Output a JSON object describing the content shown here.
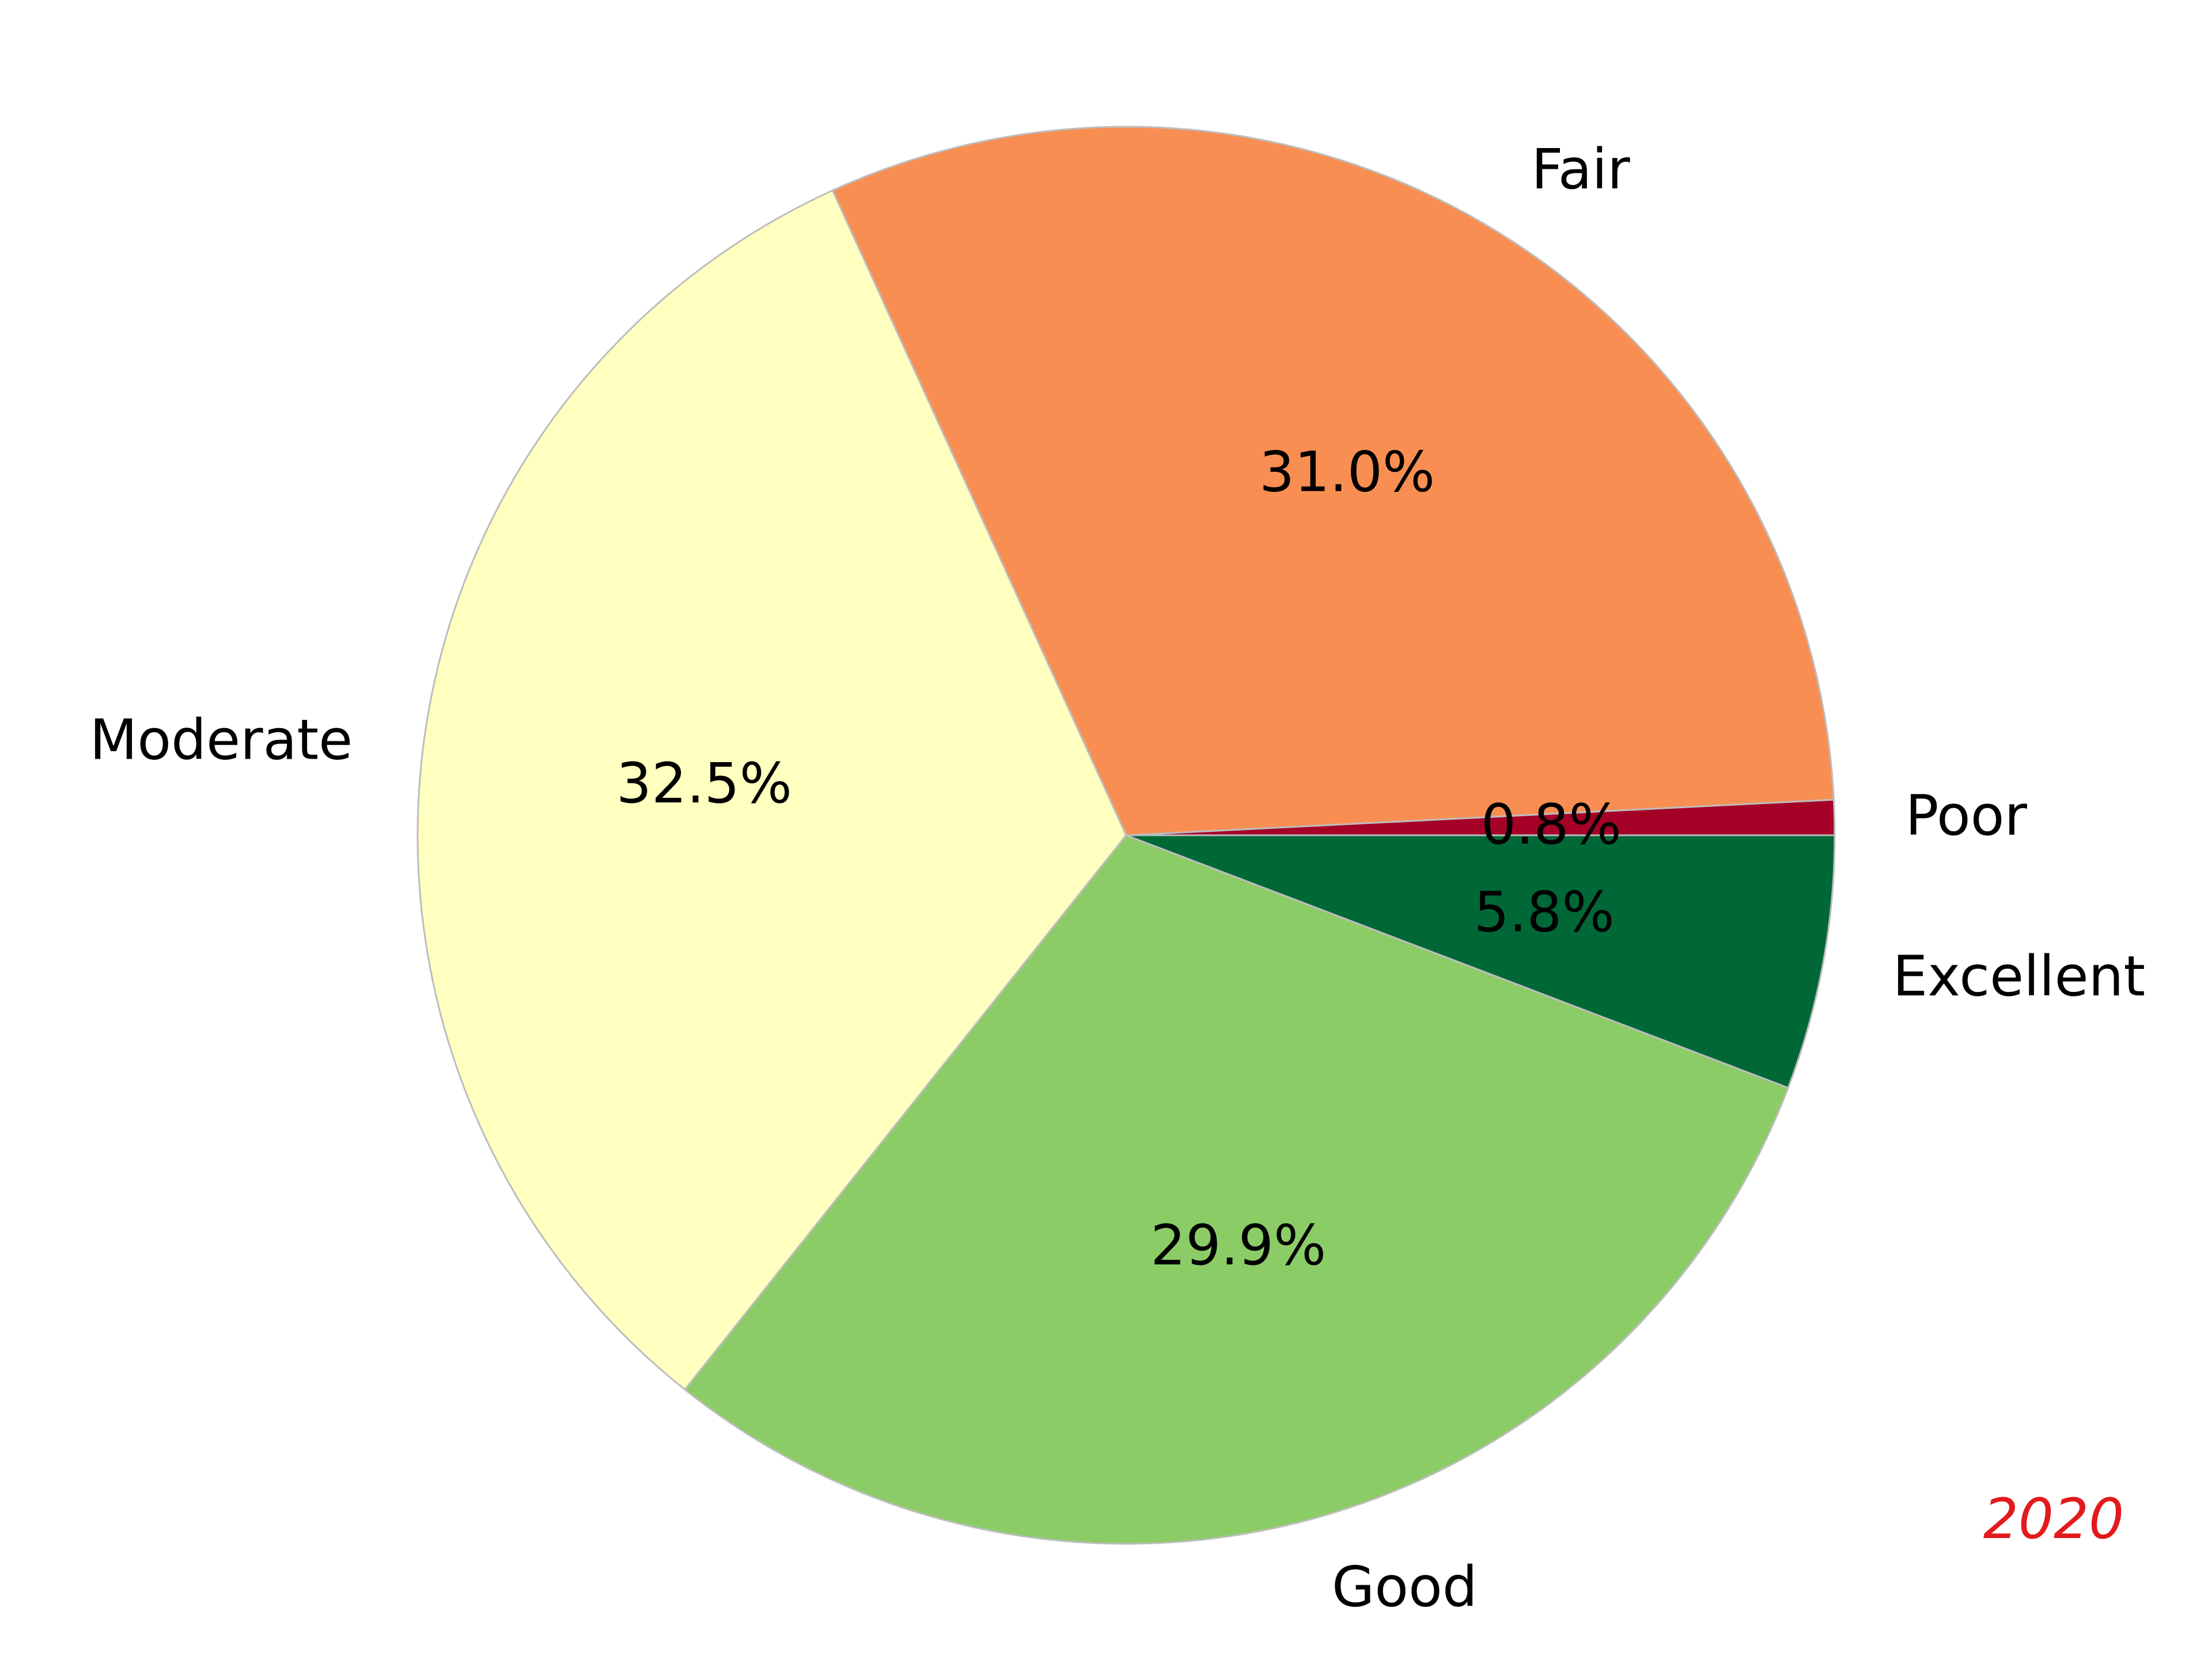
{
  "chart_data": {
    "type": "pie",
    "title": "",
    "start_angle_deg": 0,
    "direction": "counterclockwise",
    "slices": [
      {
        "label": "Poor",
        "value": 0.8,
        "pct_label": "0.8%",
        "color": "#a50026"
      },
      {
        "label": "Fair",
        "value": 31.0,
        "pct_label": "31.0%",
        "color": "#f98e52"
      },
      {
        "label": "Moderate",
        "value": 32.5,
        "pct_label": "32.5%",
        "color": "#ffffbf"
      },
      {
        "label": "Good",
        "value": 29.9,
        "pct_label": "29.9%",
        "color": "#8ccc67"
      },
      {
        "label": "Excellent",
        "value": 5.8,
        "pct_label": "5.8%",
        "color": "#006837"
      }
    ],
    "edge_color": "#bdbdbd",
    "annotation": {
      "text": "2020",
      "color": "#e41a1c",
      "position": "bottom-right"
    }
  }
}
